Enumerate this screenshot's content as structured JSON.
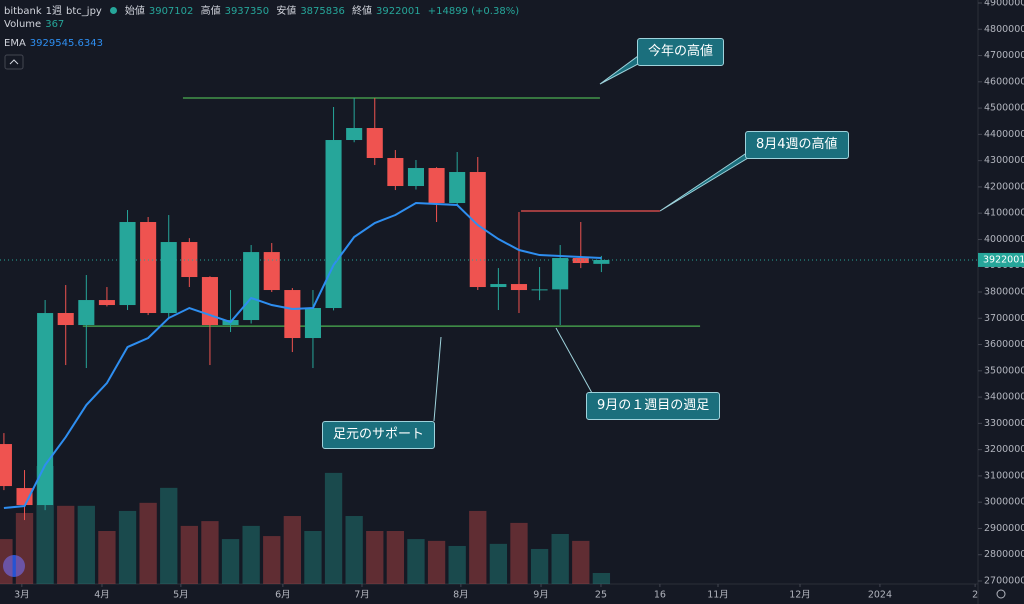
{
  "chart_data": {
    "type": "candlestick",
    "exchange": "bitbank",
    "interval": "1週",
    "symbol": "btc_jpy",
    "open_label": "始値",
    "high_label": "高値",
    "low_label": "安値",
    "close_label": "終値",
    "change": "+14899 (+0.38%)",
    "volume_label": "Volume",
    "ema_label": "EMA",
    "up_color": "#26a69a",
    "down_color": "#ef5350",
    "ema_color": "#2e8ef0",
    "open": [
      3221300,
      3053800,
      2989100,
      3720000,
      3674300,
      3769400,
      3750400,
      4066400,
      3720000,
      3990200,
      3857000,
      3674300,
      3693300,
      3952000,
      3807500,
      3624800,
      3739000,
      4378500,
      4424200,
      4310000,
      4203400,
      4271900,
      4138700,
      4256700,
      3818900,
      3830300,
      3807500,
      3810000,
      3929300,
      3907102
    ],
    "high": [
      3263000,
      3122300,
      3769400,
      3826500,
      3864600,
      3818900,
      4112000,
      4085400,
      4093000,
      4005000,
      3860000,
      3807500,
      3978800,
      3986400,
      3815000,
      3807500,
      4504100,
      4538400,
      4538400,
      4340400,
      4302400,
      4275000,
      4332800,
      4313800,
      3891200,
      4104400,
      3895000,
      3978800,
      4066400,
      3937350
    ],
    "low": [
      3046000,
      2932000,
      2970000,
      3522000,
      3510600,
      3745000,
      3731400,
      3712300,
      3700000,
      3819000,
      3522000,
      3647600,
      3680000,
      3800000,
      3571500,
      3510600,
      3730000,
      4370000,
      4283300,
      4188100,
      4190000,
      4066400,
      4131000,
      3807500,
      3731400,
      3720000,
      3769000,
      3674300,
      3891000,
      3875836
    ],
    "close": [
      3061400,
      2989100,
      3719900,
      3674300,
      3769400,
      3750400,
      4066400,
      3720000,
      3990200,
      3857000,
      3674300,
      3693300,
      3952000,
      3807500,
      3624800,
      3739000,
      4378500,
      4424200,
      4310000,
      4203400,
      4271900,
      4138700,
      4256700,
      3818900,
      3830300,
      3807500,
      3810000,
      3929300,
      3910300,
      3922001
    ],
    "volume": [
      1500,
      2370,
      3940,
      2610,
      2610,
      1770,
      2440,
      2710,
      3210,
      1940,
      2100,
      1500,
      1940,
      1600,
      2270,
      1770,
      3710,
      2270,
      1770,
      1770,
      1500,
      1440,
      1270,
      2440,
      1340,
      2040,
      1170,
      1670,
      1440,
      367
    ],
    "ema": [
      2977700,
      2985300,
      3141400,
      3247900,
      3369700,
      3453500,
      3590500,
      3624800,
      3700900,
      3739000,
      3712300,
      3685700,
      3777100,
      3750400,
      3735200,
      3739000,
      3902700,
      4009300,
      4062500,
      4093000,
      4138700,
      4134900,
      4131000,
      4054900,
      4001600,
      3959800,
      3940700,
      3936900,
      3933100,
      3929545.6343
    ],
    "ylim": [
      2700000,
      4900000
    ],
    "yticks": [
      2700000,
      2800000,
      2900000,
      3000000,
      3100000,
      3200000,
      3300000,
      3400000,
      3500000,
      3600000,
      3700000,
      3800000,
      3900000,
      4000000,
      4100000,
      4200000,
      4300000,
      4400000,
      4500000,
      4600000,
      4700000,
      4800000,
      4900000
    ],
    "xlim": [
      -0.19,
      47.28
    ],
    "xticks": [
      {
        "value": 0.87,
        "label": "3月"
      },
      {
        "value": 4.76,
        "label": "4月"
      },
      {
        "value": 8.59,
        "label": "5月"
      },
      {
        "value": 13.54,
        "label": "6月"
      },
      {
        "value": 17.38,
        "label": "7月"
      },
      {
        "value": 22.18,
        "label": "8月"
      },
      {
        "value": 26.07,
        "label": "9月"
      },
      {
        "value": 28.98,
        "label": "25"
      },
      {
        "value": 31.84,
        "label": "16"
      },
      {
        "value": 34.66,
        "label": "11月"
      },
      {
        "value": 38.64,
        "label": "12月"
      },
      {
        "value": 42.52,
        "label": "2024"
      },
      {
        "value": 47.14,
        "label": "2"
      }
    ],
    "levels": [
      {
        "value": 4538400,
        "color": "#4caf50",
        "x": [
          8.69,
          28.93
        ]
      },
      {
        "value": 4108200,
        "color": "#ef5350",
        "x": [
          25.1,
          31.84
        ]
      },
      {
        "value": 3670000,
        "color": "#4caf50",
        "x": [
          3.83,
          33.79
        ]
      }
    ],
    "annotations": [
      "今年の高値",
      "8月4週の高値",
      "9月の１週目の週足",
      "足元のサポート"
    ]
  }
}
